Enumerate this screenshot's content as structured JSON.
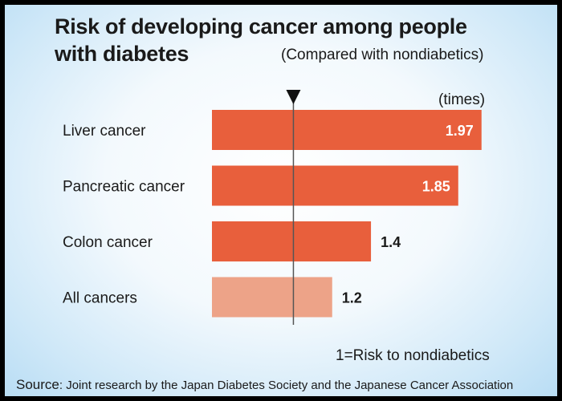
{
  "chart_data": {
    "type": "bar",
    "orientation": "horizontal",
    "title_lines": [
      "Risk of developing cancer among people",
      "with diabetes"
    ],
    "subtitle": "(Compared with nondiabetics)",
    "unit": "(times)",
    "categories": [
      "Liver cancer",
      "Pancreatic cancer",
      "Colon cancer",
      "All cancers"
    ],
    "values": [
      1.97,
      1.85,
      1.4,
      1.2
    ],
    "value_labels": [
      "1.97",
      "1.85",
      "1.4",
      "1.2"
    ],
    "reference_value": 1,
    "reference_label": "1=Risk to nondiabetics",
    "bar_colors": [
      "#e85f3c",
      "#e85f3c",
      "#e85f3c",
      "#eda388"
    ],
    "xlim": [
      0.58,
      2.0
    ],
    "source_label": "Source",
    "source_text": ": Joint research by the Japan Diabetes Society and the Japanese Cancer Association"
  }
}
